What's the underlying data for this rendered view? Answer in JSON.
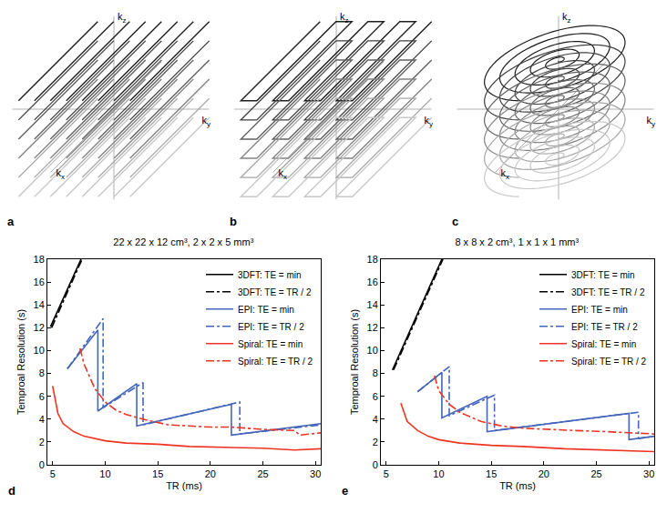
{
  "diagrams": [
    {
      "letter": "a",
      "axes": {
        "x": "kx",
        "y": "ky",
        "z": "kz"
      },
      "type": "3DFT"
    },
    {
      "letter": "b",
      "axes": {
        "x": "kx",
        "y": "ky",
        "z": "kz"
      },
      "type": "EPI"
    },
    {
      "letter": "c",
      "axes": {
        "x": "kx",
        "y": "ky",
        "z": "kz"
      },
      "type": "Spiral"
    }
  ],
  "chart_data": [
    {
      "panel": "d",
      "type": "line",
      "title": "22 x 22 x 12 cm³, 2 x 2 x 5 mm³",
      "x_label": "TR (ms)",
      "y_label": "Temproal Resolution (s)",
      "xlim": [
        4.5,
        30.5
      ],
      "xticks": [
        5,
        10,
        15,
        20,
        25,
        30
      ],
      "ylim": [
        0,
        18
      ],
      "yticks": [
        0,
        2,
        4,
        6,
        8,
        10,
        12,
        14,
        16,
        18
      ],
      "legend": "top right",
      "series": [
        {
          "name": "3DFT: TE = min",
          "color": "#000000",
          "line_style": "solid",
          "x": [
            4.8,
            7.7
          ],
          "values": [
            12.1,
            18
          ]
        },
        {
          "name": "3DFT: TE = TR / 2",
          "color": "#000000",
          "line_style": "dashdot",
          "x": [
            4.9,
            7.8
          ],
          "values": [
            12.0,
            18
          ]
        },
        {
          "name": "EPI: TE = min",
          "color": "#4466bb",
          "line_style": "solid",
          "x": [
            6.4,
            9.3,
            9.3,
            13.0,
            13.0,
            22.0,
            22.0,
            30.5
          ],
          "values": [
            8.4,
            11.8,
            4.7,
            7.1,
            3.4,
            5.3,
            2.6,
            3.6
          ]
        },
        {
          "name": "EPI: TE = TR / 2",
          "color": "#4466bb",
          "line_style": "dashdot",
          "x": [
            6.4,
            9.8,
            9.8,
            13.6,
            13.6,
            22.8,
            22.8,
            30.5
          ],
          "values": [
            8.4,
            12.8,
            5.0,
            7.2,
            3.5,
            5.5,
            2.7,
            3.5
          ]
        },
        {
          "name": "Spiral: TE = min",
          "color": "#ee3322",
          "line_style": "solid",
          "x": [
            5.0,
            5.5,
            6.0,
            7.0,
            8.0,
            9.0,
            10.0,
            12.0,
            15.0,
            18.0,
            22.0,
            25.0,
            28.0,
            30.5
          ],
          "values": [
            6.9,
            4.5,
            3.6,
            2.9,
            2.5,
            2.3,
            2.1,
            1.9,
            1.8,
            1.6,
            1.5,
            1.45,
            1.3,
            1.4
          ]
        },
        {
          "name": "Spiral: TE = TR / 2",
          "color": "#ee3322",
          "line_style": "dashdot",
          "x": [
            7.6,
            8.0,
            9.0,
            10.0,
            11.0,
            12.0,
            14.0,
            16.0,
            18.0,
            20.0,
            22.0,
            25.0,
            28.0,
            28.5,
            30.5
          ],
          "values": [
            10.2,
            8.8,
            6.7,
            5.5,
            4.8,
            4.4,
            3.9,
            3.5,
            3.4,
            3.3,
            3.3,
            3.1,
            3.0,
            2.6,
            2.8
          ]
        }
      ]
    },
    {
      "panel": "e",
      "type": "line",
      "title": "8 x 8 x 2 cm³, 1 x 1 x 1 mm³",
      "x_label": "TR (ms)",
      "y_label": "Temproal Resolution (s)",
      "xlim": [
        4.5,
        30.5
      ],
      "xticks": [
        5,
        10,
        15,
        20,
        25,
        30
      ],
      "ylim": [
        0,
        18
      ],
      "yticks": [
        0,
        2,
        4,
        6,
        8,
        10,
        12,
        14,
        16,
        18
      ],
      "legend": "top right",
      "series": [
        {
          "name": "3DFT: TE = min",
          "color": "#000000",
          "line_style": "solid",
          "x": [
            5.6,
            10.3
          ],
          "values": [
            8.3,
            18
          ]
        },
        {
          "name": "3DFT: TE = TR / 2",
          "color": "#000000",
          "line_style": "dashdot",
          "x": [
            5.7,
            10.4
          ],
          "values": [
            8.3,
            18
          ]
        },
        {
          "name": "EPI: TE = min",
          "color": "#4466bb",
          "line_style": "solid",
          "x": [
            8.0,
            10.3,
            10.3,
            14.6,
            14.6,
            28.1,
            28.1,
            30.5
          ],
          "values": [
            6.4,
            8.1,
            4.1,
            6.0,
            2.9,
            4.5,
            2.2,
            2.5
          ]
        },
        {
          "name": "EPI: TE = TR / 2",
          "color": "#4466bb",
          "line_style": "dashdot",
          "x": [
            8.0,
            11.0,
            11.0,
            15.3,
            15.3,
            29.0,
            29.0,
            30.5
          ],
          "values": [
            6.4,
            8.6,
            4.3,
            6.1,
            3.0,
            4.6,
            2.3,
            2.5
          ]
        },
        {
          "name": "Spiral: TE = min",
          "color": "#ee3322",
          "line_style": "solid",
          "x": [
            6.4,
            7.0,
            8.0,
            9.0,
            10.0,
            12.0,
            15.0,
            18.0,
            22.0,
            25.0,
            28.0,
            30.5
          ],
          "values": [
            5.4,
            3.8,
            3.0,
            2.5,
            2.2,
            1.9,
            1.7,
            1.6,
            1.4,
            1.3,
            1.2,
            1.15
          ]
        },
        {
          "name": "Spiral: TE = TR / 2",
          "color": "#ee3322",
          "line_style": "dashdot",
          "x": [
            9.6,
            10.0,
            11.0,
            12.0,
            14.0,
            16.0,
            18.0,
            20.0,
            23.0,
            26.0,
            28.0,
            30.5
          ],
          "values": [
            7.8,
            6.5,
            5.3,
            4.6,
            3.8,
            3.4,
            3.2,
            3.1,
            3.0,
            2.9,
            2.8,
            2.7
          ]
        }
      ]
    }
  ]
}
